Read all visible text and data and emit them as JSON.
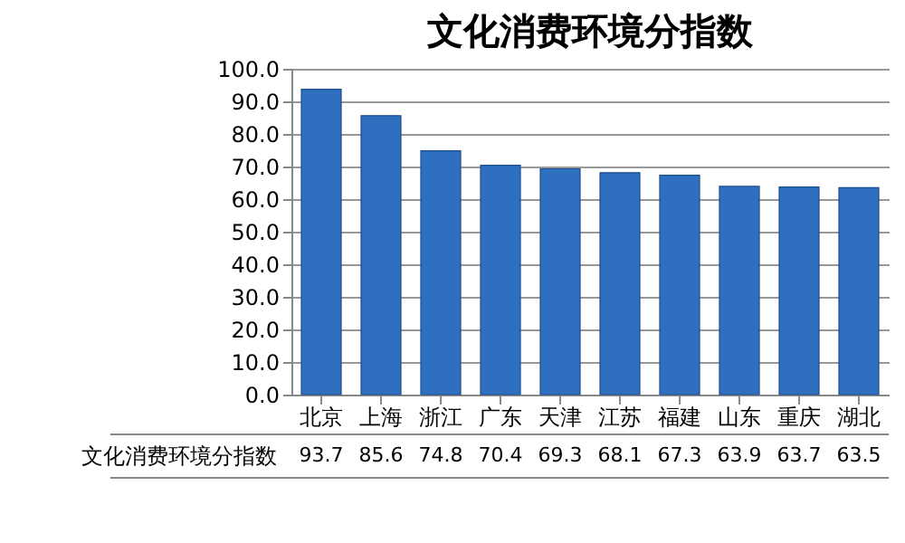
{
  "chart_data": {
    "type": "bar",
    "title": "文化消费环境分指数",
    "categories": [
      "北京",
      "上海",
      "浙江",
      "广东",
      "天津",
      "江苏",
      "福建",
      "山东",
      "重庆",
      "湖北"
    ],
    "series": [
      {
        "name": "文化消费环境分指数",
        "color": "#2f6fbf",
        "values": [
          93.7,
          85.6,
          74.8,
          70.4,
          69.3,
          68.1,
          67.3,
          63.9,
          63.7,
          63.5
        ]
      }
    ],
    "ylim": [
      0,
      100
    ],
    "yticks": [
      {
        "value": 0,
        "label": "0.0"
      },
      {
        "value": 10,
        "label": "10.0"
      },
      {
        "value": 20,
        "label": "20.0"
      },
      {
        "value": 30,
        "label": "30.0"
      },
      {
        "value": 40,
        "label": "40.0"
      },
      {
        "value": 50,
        "label": "50.0"
      },
      {
        "value": 60,
        "label": "60.0"
      },
      {
        "value": 70,
        "label": "70.0"
      },
      {
        "value": 80,
        "label": "80.0"
      },
      {
        "value": 90,
        "label": "90.0"
      },
      {
        "value": 100,
        "label": "100.0"
      }
    ],
    "grid": "y",
    "data_labels": true
  }
}
